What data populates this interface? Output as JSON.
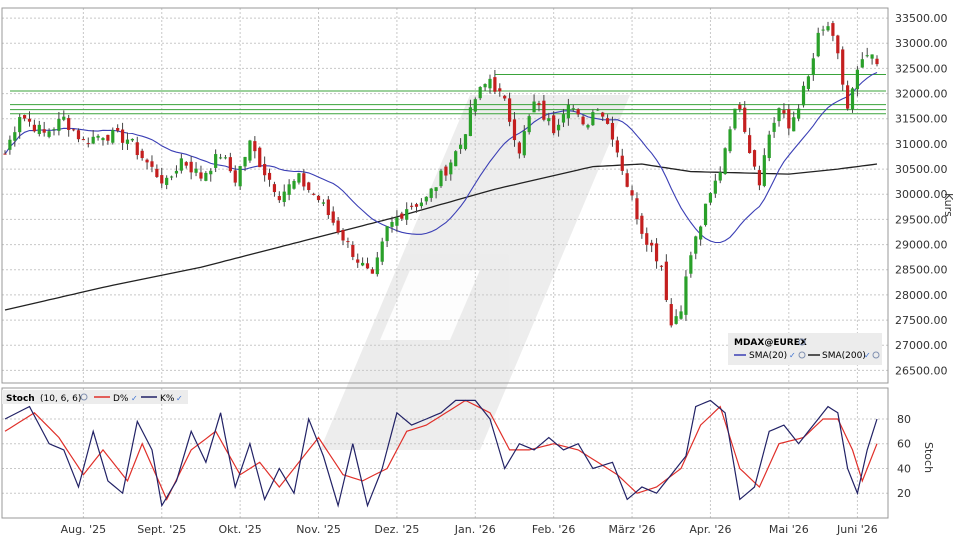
{
  "chart_data": [
    {
      "type": "candlestick",
      "instrument": "MDAX@EUREX",
      "ylabel": "Kurs",
      "ylim": [
        26250,
        33700
      ],
      "yticks": [
        26500,
        27000,
        27500,
        28000,
        28500,
        29000,
        29500,
        30000,
        30500,
        31000,
        31500,
        32000,
        32500,
        33000,
        33500
      ],
      "ytick_labels": [
        "26500.00",
        "27000.00",
        "27500.00",
        "28000.00",
        "28500.00",
        "29000.00",
        "29500.00",
        "30000.00",
        "30500.00",
        "31000.00",
        "31500.00",
        "32000.00",
        "32500.00",
        "33000.00",
        "33500.00"
      ],
      "x_month_labels": [
        "Aug. '25",
        "Sept. '25",
        "Okt. '25",
        "Nov. '25",
        "Dez. '25",
        "Jan. '26",
        "Feb. '26",
        "März '26",
        "Apr. '26",
        "Mai '26",
        "Juni '26"
      ],
      "legend": {
        "series": [
          {
            "name": "SMA(20)",
            "color": "#3b3fb5"
          },
          {
            "name": "SMA(200)",
            "color": "#222222"
          }
        ]
      },
      "horizontal_levels": [
        32380,
        32050,
        31780,
        31680,
        31600
      ],
      "closes_waypoints": [
        [
          0,
          30800
        ],
        [
          3,
          31600
        ],
        [
          8,
          31200
        ],
        [
          12,
          31500
        ],
        [
          16,
          31050
        ],
        [
          20,
          31200
        ],
        [
          25,
          31100
        ],
        [
          30,
          30500
        ],
        [
          33,
          30200
        ],
        [
          36,
          30700
        ],
        [
          40,
          30350
        ],
        [
          44,
          30800
        ],
        [
          47,
          30300
        ],
        [
          50,
          31000
        ],
        [
          53,
          30450
        ],
        [
          56,
          30000
        ],
        [
          60,
          30300
        ],
        [
          64,
          29900
        ],
        [
          68,
          29300
        ],
        [
          72,
          28700
        ],
        [
          75,
          28300
        ],
        [
          78,
          29300
        ],
        [
          82,
          29750
        ],
        [
          86,
          29900
        ],
        [
          90,
          30500
        ],
        [
          93,
          31000
        ],
        [
          96,
          31900
        ],
        [
          99,
          32300
        ],
        [
          102,
          31800
        ],
        [
          105,
          30900
        ],
        [
          108,
          31800
        ],
        [
          112,
          31300
        ],
        [
          115,
          31900
        ],
        [
          118,
          31300
        ],
        [
          121,
          31800
        ],
        [
          124,
          31200
        ],
        [
          127,
          30200
        ],
        [
          130,
          29300
        ],
        [
          134,
          28600
        ],
        [
          136,
          27400
        ],
        [
          138,
          27800
        ],
        [
          140,
          28800
        ],
        [
          143,
          29700
        ],
        [
          146,
          30500
        ],
        [
          148,
          31400
        ],
        [
          150,
          31800
        ],
        [
          152,
          30900
        ],
        [
          154,
          30300
        ],
        [
          156,
          31200
        ],
        [
          158,
          31700
        ],
        [
          160,
          31300
        ],
        [
          162,
          31800
        ],
        [
          164,
          32300
        ],
        [
          166,
          33100
        ],
        [
          168,
          33350
        ],
        [
          170,
          32700
        ],
        [
          172,
          31700
        ],
        [
          174,
          32400
        ],
        [
          176,
          32750
        ],
        [
          178,
          32550
        ]
      ],
      "sma200_waypoints": [
        [
          0,
          27700
        ],
        [
          20,
          28150
        ],
        [
          40,
          28550
        ],
        [
          60,
          29050
        ],
        [
          80,
          29550
        ],
        [
          100,
          30100
        ],
        [
          120,
          30550
        ],
        [
          130,
          30600
        ],
        [
          140,
          30450
        ],
        [
          160,
          30400
        ],
        [
          170,
          30500
        ],
        [
          178,
          30600
        ]
      ]
    },
    {
      "type": "line",
      "title": "Stoch",
      "params": "(10, 6, 6)",
      "ylim": [
        0,
        105
      ],
      "yticks": [
        20,
        40,
        60,
        80
      ],
      "ytick_labels": [
        "20",
        "40",
        "60",
        "80"
      ],
      "ylabel": "Stoch",
      "legend": {
        "series": [
          {
            "name": "D%",
            "color": "#e0302a"
          },
          {
            "name": "K%",
            "color": "#222266"
          }
        ]
      },
      "k_waypoints": [
        [
          0,
          80
        ],
        [
          5,
          90
        ],
        [
          9,
          60
        ],
        [
          12,
          55
        ],
        [
          15,
          25
        ],
        [
          18,
          70
        ],
        [
          21,
          30
        ],
        [
          24,
          20
        ],
        [
          27,
          78
        ],
        [
          30,
          55
        ],
        [
          32,
          10
        ],
        [
          35,
          30
        ],
        [
          38,
          70
        ],
        [
          41,
          45
        ],
        [
          44,
          85
        ],
        [
          47,
          25
        ],
        [
          50,
          60
        ],
        [
          53,
          15
        ],
        [
          56,
          40
        ],
        [
          59,
          20
        ],
        [
          62,
          80
        ],
        [
          65,
          50
        ],
        [
          68,
          10
        ],
        [
          71,
          60
        ],
        [
          74,
          10
        ],
        [
          77,
          40
        ],
        [
          80,
          85
        ],
        [
          83,
          75
        ],
        [
          86,
          80
        ],
        [
          89,
          85
        ],
        [
          92,
          95
        ],
        [
          96,
          95
        ],
        [
          99,
          80
        ],
        [
          102,
          40
        ],
        [
          105,
          60
        ],
        [
          108,
          55
        ],
        [
          111,
          65
        ],
        [
          114,
          55
        ],
        [
          117,
          60
        ],
        [
          120,
          40
        ],
        [
          124,
          45
        ],
        [
          127,
          15
        ],
        [
          130,
          25
        ],
        [
          133,
          20
        ],
        [
          136,
          35
        ],
        [
          139,
          50
        ],
        [
          141,
          90
        ],
        [
          144,
          95
        ],
        [
          147,
          85
        ],
        [
          150,
          15
        ],
        [
          153,
          25
        ],
        [
          156,
          70
        ],
        [
          159,
          75
        ],
        [
          162,
          60
        ],
        [
          166,
          80
        ],
        [
          168,
          90
        ],
        [
          170,
          85
        ],
        [
          172,
          40
        ],
        [
          174,
          20
        ],
        [
          176,
          55
        ],
        [
          178,
          80
        ]
      ],
      "d_waypoints": [
        [
          0,
          70
        ],
        [
          6,
          85
        ],
        [
          11,
          65
        ],
        [
          16,
          35
        ],
        [
          20,
          55
        ],
        [
          25,
          30
        ],
        [
          28,
          60
        ],
        [
          33,
          15
        ],
        [
          38,
          55
        ],
        [
          43,
          70
        ],
        [
          48,
          35
        ],
        [
          52,
          45
        ],
        [
          56,
          25
        ],
        [
          60,
          45
        ],
        [
          64,
          65
        ],
        [
          69,
          35
        ],
        [
          73,
          30
        ],
        [
          78,
          40
        ],
        [
          82,
          70
        ],
        [
          86,
          75
        ],
        [
          90,
          85
        ],
        [
          94,
          95
        ],
        [
          99,
          85
        ],
        [
          103,
          55
        ],
        [
          107,
          55
        ],
        [
          112,
          60
        ],
        [
          117,
          55
        ],
        [
          121,
          45
        ],
        [
          125,
          35
        ],
        [
          129,
          20
        ],
        [
          133,
          25
        ],
        [
          138,
          40
        ],
        [
          142,
          75
        ],
        [
          146,
          90
        ],
        [
          150,
          40
        ],
        [
          154,
          25
        ],
        [
          158,
          60
        ],
        [
          163,
          65
        ],
        [
          167,
          80
        ],
        [
          170,
          80
        ],
        [
          173,
          55
        ],
        [
          175,
          30
        ],
        [
          178,
          60
        ]
      ]
    }
  ]
}
